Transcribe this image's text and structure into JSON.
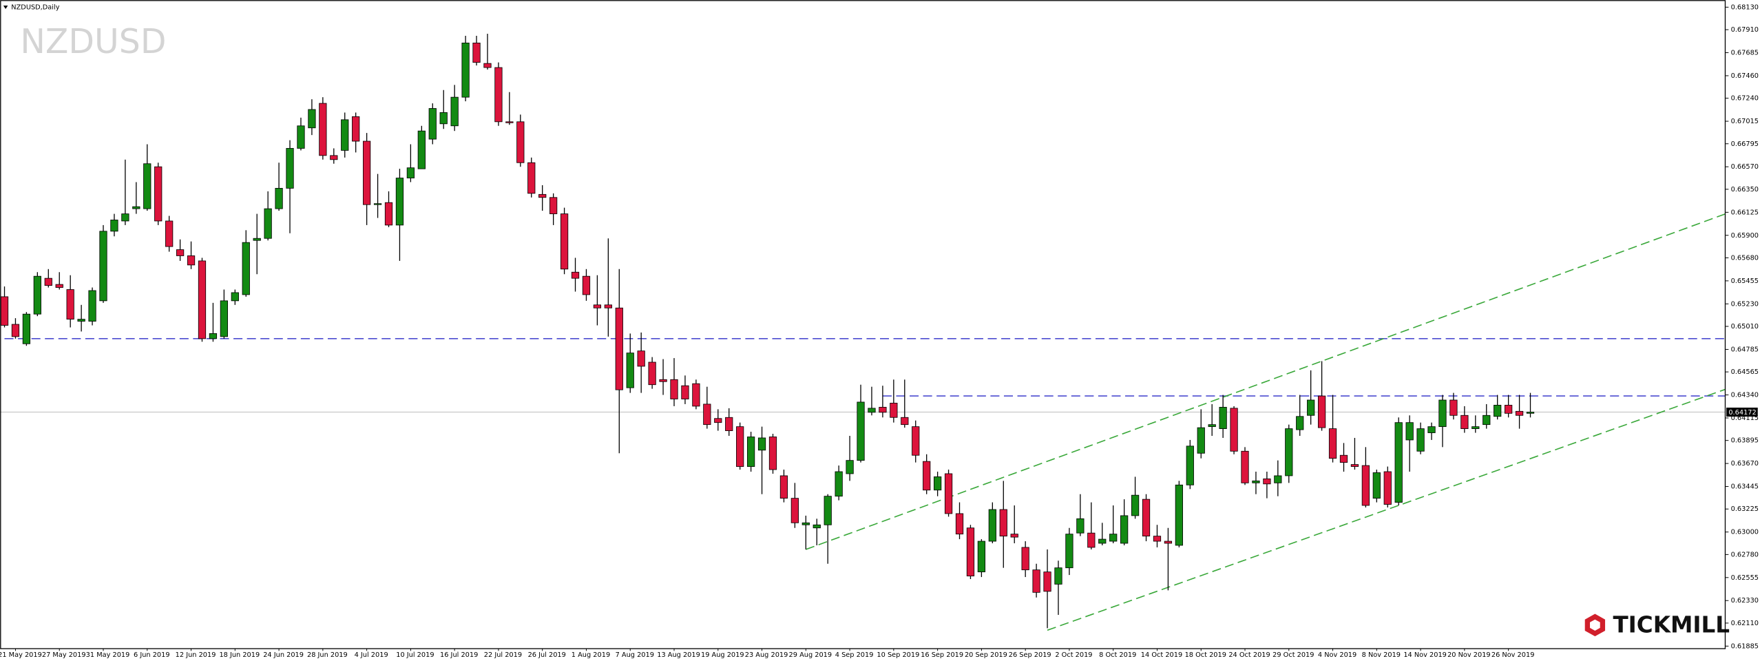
{
  "header": {
    "symbol": "NZDUSD,Daily",
    "watermark": "NZDUSD"
  },
  "brand": "TICKMILL",
  "chart_data": {
    "type": "candlestick",
    "categories": [
      null,
      "21 May 2019",
      null,
      null,
      null,
      "27 May 2019",
      null,
      null,
      null,
      "31 May 2019",
      null,
      null,
      null,
      "6 Jun 2019",
      null,
      null,
      null,
      "12 Jun 2019",
      null,
      null,
      null,
      "18 Jun 2019",
      null,
      null,
      null,
      "24 Jun 2019",
      null,
      null,
      null,
      "28 Jun 2019",
      null,
      null,
      null,
      "4 Jul 2019",
      null,
      null,
      null,
      "10 Jul 2019",
      null,
      null,
      null,
      "16 Jul 2019",
      null,
      null,
      null,
      "22 Jul 2019",
      null,
      null,
      null,
      "26 Jul 2019",
      null,
      null,
      null,
      "1 Aug 2019",
      null,
      null,
      null,
      "7 Aug 2019",
      null,
      null,
      null,
      "13 Aug 2019",
      null,
      null,
      null,
      "19 Aug 2019",
      null,
      null,
      null,
      "23 Aug 2019",
      null,
      null,
      null,
      "29 Aug 2019",
      null,
      null,
      null,
      "4 Sep 2019",
      null,
      null,
      null,
      "10 Sep 2019",
      null,
      null,
      null,
      "16 Sep 2019",
      null,
      null,
      null,
      "20 Sep 2019",
      null,
      null,
      null,
      "26 Sep 2019",
      null,
      null,
      null,
      "2 Oct 2019",
      null,
      null,
      null,
      "8 Oct 2019",
      null,
      null,
      null,
      "14 Oct 2019",
      null,
      null,
      null,
      "18 Oct 2019",
      null,
      null,
      null,
      "24 Oct 2019",
      null,
      null,
      null,
      "29 Oct 2019",
      null,
      null,
      null,
      "4 Nov 2019",
      null,
      null,
      null,
      "8 Nov 2019",
      null,
      null,
      null,
      "14 Nov 2019",
      null,
      null,
      null,
      "20 Nov 2019",
      null,
      null,
      null,
      "26 Nov 2019",
      null,
      null
    ],
    "open": [
      0.653,
      0.6503,
      0.6484,
      0.6513,
      0.6548,
      0.6542,
      0.6537,
      0.6506,
      0.6506,
      0.6526,
      0.6594,
      0.6604,
      0.6616,
      0.6616,
      0.6657,
      0.6604,
      0.6576,
      0.657,
      0.6565,
      0.6489,
      0.6491,
      0.6526,
      0.6532,
      0.6585,
      0.6587,
      0.6616,
      0.6636,
      0.6675,
      0.6695,
      0.6719,
      0.6668,
      0.6673,
      0.6706,
      0.6682,
      0.662,
      0.6622,
      0.66,
      0.6646,
      0.6655,
      0.6684,
      0.6699,
      0.6697,
      0.6725,
      0.6778,
      0.6758,
      0.6754,
      0.6701,
      0.6701,
      0.6661,
      0.663,
      0.6627,
      0.6611,
      0.6554,
      0.655,
      0.6522,
      0.6522,
      0.6519,
      0.6441,
      0.6477,
      0.6466,
      0.6449,
      0.6449,
      0.6443,
      0.6445,
      0.6425,
      0.6411,
      0.6412,
      0.6403,
      0.6364,
      0.638,
      0.6393,
      0.6355,
      0.6333,
      0.6307,
      0.6304,
      0.6307,
      0.6335,
      0.6357,
      0.637,
      0.6417,
      0.6422,
      0.6426,
      0.6412,
      0.6403,
      0.6369,
      0.6341,
      0.6357,
      0.6318,
      0.6304,
      0.6261,
      0.6291,
      0.6322,
      0.6298,
      0.6285,
      0.6263,
      0.6261,
      0.6249,
      0.6265,
      0.6299,
      0.6299,
      0.6289,
      0.6291,
      0.6289,
      0.6316,
      0.6332,
      0.6296,
      0.6291,
      0.6287,
      0.6346,
      0.6377,
      0.6403,
      0.6401,
      0.6421,
      0.6379,
      0.6348,
      0.6352,
      0.6348,
      0.6355,
      0.64,
      0.6414,
      0.6433,
      0.6401,
      0.6375,
      0.6366,
      0.6365,
      0.6333,
      0.6359,
      0.6329,
      0.639,
      0.6379,
      0.6397,
      0.6403,
      0.6429,
      0.6414,
      0.6401,
      0.6405,
      0.6413,
      0.6424,
      0.6418,
      0.6416
    ],
    "high": [
      0.654,
      0.6509,
      0.6515,
      0.6554,
      0.6557,
      0.6554,
      0.6551,
      0.6522,
      0.6539,
      0.66,
      0.6611,
      0.6664,
      0.6642,
      0.6679,
      0.6661,
      0.6609,
      0.6586,
      0.6584,
      0.6568,
      0.6524,
      0.6537,
      0.6537,
      0.6595,
      0.6611,
      0.6633,
      0.6661,
      0.6683,
      0.6705,
      0.6723,
      0.6725,
      0.6675,
      0.671,
      0.671,
      0.669,
      0.665,
      0.6633,
      0.6655,
      0.6679,
      0.6697,
      0.6719,
      0.6732,
      0.6737,
      0.6785,
      0.6785,
      0.6787,
      0.6759,
      0.673,
      0.6708,
      0.6666,
      0.6639,
      0.6631,
      0.6617,
      0.6568,
      0.6557,
      0.6551,
      0.6587,
      0.6557,
      0.6494,
      0.6495,
      0.6471,
      0.6469,
      0.647,
      0.6453,
      0.6449,
      0.6442,
      0.642,
      0.6421,
      0.6407,
      0.6398,
      0.6403,
      0.6396,
      0.6361,
      0.6348,
      0.6316,
      0.6313,
      0.6337,
      0.6365,
      0.6394,
      0.6444,
      0.6442,
      0.6443,
      0.6449,
      0.6449,
      0.6409,
      0.6376,
      0.6359,
      0.6361,
      0.6329,
      0.6307,
      0.6293,
      0.6329,
      0.635,
      0.6326,
      0.6291,
      0.6269,
      0.6283,
      0.6272,
      0.6304,
      0.6337,
      0.6329,
      0.6309,
      0.6326,
      0.6332,
      0.6354,
      0.6337,
      0.6307,
      0.6304,
      0.635,
      0.639,
      0.642,
      0.6425,
      0.6434,
      0.6423,
      0.6383,
      0.6359,
      0.6359,
      0.637,
      0.6405,
      0.6434,
      0.6458,
      0.6467,
      0.6434,
      0.6387,
      0.6392,
      0.6383,
      0.6361,
      0.6364,
      0.6412,
      0.6414,
      0.6407,
      0.6407,
      0.6434,
      0.6436,
      0.6423,
      0.6414,
      0.6425,
      0.6434,
      0.6434,
      0.6434,
      0.6436
    ],
    "low": [
      0.65,
      0.6489,
      0.6482,
      0.6511,
      0.6539,
      0.6537,
      0.65,
      0.6496,
      0.6502,
      0.6524,
      0.6589,
      0.66,
      0.6611,
      0.6614,
      0.66,
      0.6574,
      0.6565,
      0.6557,
      0.6486,
      0.6486,
      0.6489,
      0.6522,
      0.653,
      0.6552,
      0.6585,
      0.6614,
      0.6592,
      0.6673,
      0.6688,
      0.6664,
      0.666,
      0.6666,
      0.6671,
      0.66,
      0.6607,
      0.6598,
      0.6565,
      0.6642,
      0.6655,
      0.6679,
      0.6694,
      0.6692,
      0.6721,
      0.6756,
      0.6752,
      0.6697,
      0.6698,
      0.6657,
      0.6627,
      0.6614,
      0.66,
      0.6552,
      0.6535,
      0.6526,
      0.6502,
      0.6491,
      0.6377,
      0.6436,
      0.6436,
      0.644,
      0.6434,
      0.6423,
      0.6425,
      0.642,
      0.6401,
      0.6399,
      0.6394,
      0.6361,
      0.6359,
      0.6337,
      0.6357,
      0.6329,
      0.6304,
      0.6283,
      0.6287,
      0.6269,
      0.6331,
      0.635,
      0.6368,
      0.6414,
      0.6412,
      0.6407,
      0.6402,
      0.6368,
      0.6337,
      0.6335,
      0.6315,
      0.6293,
      0.6254,
      0.6256,
      0.6289,
      0.6265,
      0.6289,
      0.6256,
      0.6236,
      0.6206,
      0.6219,
      0.6258,
      0.6296,
      0.6283,
      0.6287,
      0.6289,
      0.6287,
      0.6313,
      0.6291,
      0.6285,
      0.6243,
      0.6285,
      0.6342,
      0.6372,
      0.6394,
      0.6392,
      0.6376,
      0.6346,
      0.6337,
      0.6333,
      0.6335,
      0.6348,
      0.6394,
      0.6405,
      0.6399,
      0.6368,
      0.6359,
      0.6361,
      0.6324,
      0.6329,
      0.6324,
      0.6326,
      0.6359,
      0.6376,
      0.639,
      0.6383,
      0.641,
      0.6397,
      0.6397,
      0.6401,
      0.641,
      0.6412,
      0.6401,
      0.6412
    ],
    "close": [
      0.6502,
      0.6491,
      0.6513,
      0.655,
      0.6541,
      0.6539,
      0.6508,
      0.6508,
      0.6536,
      0.6594,
      0.6605,
      0.6611,
      0.6618,
      0.666,
      0.6604,
      0.6579,
      0.657,
      0.6561,
      0.6489,
      0.6494,
      0.6526,
      0.6534,
      0.6583,
      0.6587,
      0.6616,
      0.6636,
      0.6675,
      0.6697,
      0.6713,
      0.6668,
      0.6664,
      0.6703,
      0.6682,
      0.662,
      0.6621,
      0.66,
      0.6646,
      0.6656,
      0.6692,
      0.6714,
      0.671,
      0.6725,
      0.6778,
      0.6759,
      0.6754,
      0.6701,
      0.67,
      0.6661,
      0.6631,
      0.6627,
      0.6611,
      0.6557,
      0.6548,
      0.6532,
      0.6519,
      0.6519,
      0.6439,
      0.6475,
      0.6462,
      0.6444,
      0.6447,
      0.643,
      0.643,
      0.6423,
      0.6405,
      0.6407,
      0.6399,
      0.6364,
      0.6393,
      0.6392,
      0.6361,
      0.6333,
      0.6309,
      0.6309,
      0.6307,
      0.6335,
      0.6359,
      0.637,
      0.6427,
      0.6421,
      0.6417,
      0.6412,
      0.6405,
      0.6375,
      0.6341,
      0.6354,
      0.6318,
      0.6298,
      0.6257,
      0.6291,
      0.6322,
      0.6296,
      0.6295,
      0.6263,
      0.6241,
      0.6242,
      0.6265,
      0.6298,
      0.6313,
      0.6285,
      0.6293,
      0.6298,
      0.6316,
      0.6336,
      0.6296,
      0.6291,
      0.6289,
      0.6346,
      0.6384,
      0.6402,
      0.6405,
      0.6422,
      0.6379,
      0.6348,
      0.635,
      0.6347,
      0.6355,
      0.6401,
      0.6413,
      0.6429,
      0.6402,
      0.6372,
      0.6368,
      0.6364,
      0.6326,
      0.6358,
      0.6327,
      0.6407,
      0.6407,
      0.6401,
      0.6403,
      0.6429,
      0.6414,
      0.6401,
      0.6403,
      0.6414,
      0.6424,
      0.6416,
      0.6414,
      0.64172
    ],
    "up_color": "#138a13",
    "down_color": "#dc143c",
    "ylim": [
      0.6186,
      0.682
    ],
    "yticks": [
      {
        "value": 0.6813,
        "label": "0.68130"
      },
      {
        "value": 0.6791,
        "label": "0.67910"
      },
      0.67685,
      {
        "value": 0.6746,
        "label": "0.67460"
      },
      {
        "value": 0.6724,
        "label": "0.67240"
      },
      0.67015,
      0.66795,
      {
        "value": 0.6657,
        "label": "0.66570"
      },
      {
        "value": 0.6635,
        "label": "0.66350"
      },
      0.66125,
      {
        "value": 0.659,
        "label": "0.65900"
      },
      {
        "value": 0.6568,
        "label": "0.65680"
      },
      0.65455,
      {
        "value": 0.6523,
        "label": "0.65230"
      },
      {
        "value": 0.6501,
        "label": "0.65010"
      },
      0.64785,
      0.64565,
      {
        "value": 0.6434,
        "label": "0.64340"
      },
      0.64115,
      0.63895,
      {
        "value": 0.6367,
        "label": "0.63670"
      },
      0.63445,
      0.63225,
      {
        "value": 0.63,
        "label": "0.63000"
      },
      {
        "value": 0.6278,
        "label": "0.62780"
      },
      0.62555,
      {
        "value": 0.6233,
        "label": "0.62330"
      },
      {
        "value": 0.6211,
        "label": "0.62110"
      },
      0.61885
    ],
    "levels": [
      {
        "value": 0.6489,
        "from": 0
      },
      {
        "value": 0.6433,
        "from": 80
      }
    ],
    "level_color": "#4b4bd0",
    "trendlines": [
      {
        "x": [
          73,
          120
        ],
        "y": [
          0.6283,
          0.6467
        ]
      },
      {
        "x": [
          95,
          127
        ],
        "y": [
          0.6204,
          0.6326
        ]
      }
    ],
    "trendline_color": "#3aa83a",
    "price_line_color": "#c8c8c8"
  }
}
